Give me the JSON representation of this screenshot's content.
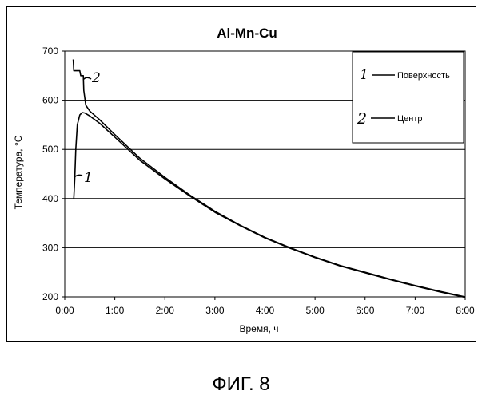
{
  "chart_data": {
    "type": "line",
    "title": "Al-Mn-Cu",
    "xlabel": "Время, ч",
    "ylabel": "Температура, °C",
    "x_ticks": [
      "0:00",
      "1:00",
      "2:00",
      "3:00",
      "4:00",
      "5:00",
      "6:00",
      "7:00",
      "8:00"
    ],
    "y_ticks": [
      "200",
      "300",
      "400",
      "500",
      "600",
      "700"
    ],
    "xlim": [
      0,
      8
    ],
    "ylim": [
      200,
      700
    ],
    "grid": "horizontal",
    "legend_position": "top-right",
    "legend": [
      {
        "number": "1",
        "label": "Поверхность"
      },
      {
        "number": "2",
        "label": "Центр"
      }
    ],
    "series": [
      {
        "id": "surface",
        "annotation": "1",
        "points": [
          [
            0.17,
            400
          ],
          [
            0.18,
            400
          ],
          [
            0.2,
            440
          ],
          [
            0.22,
            500
          ],
          [
            0.25,
            550
          ],
          [
            0.3,
            570
          ],
          [
            0.35,
            575
          ],
          [
            0.4,
            574
          ],
          [
            0.5,
            568
          ],
          [
            0.7,
            553
          ],
          [
            1.0,
            525
          ],
          [
            1.5,
            478
          ],
          [
            2.0,
            440
          ],
          [
            2.5,
            405
          ],
          [
            3.0,
            372
          ],
          [
            3.5,
            345
          ],
          [
            4.0,
            320
          ],
          [
            4.5,
            299
          ],
          [
            5.0,
            280
          ],
          [
            5.5,
            263
          ],
          [
            6.0,
            249
          ],
          [
            6.5,
            235
          ],
          [
            7.0,
            222
          ],
          [
            7.5,
            210
          ],
          [
            8.0,
            199
          ]
        ]
      },
      {
        "id": "center",
        "annotation": "2",
        "points": [
          [
            0.17,
            683
          ],
          [
            0.18,
            660
          ],
          [
            0.3,
            660
          ],
          [
            0.32,
            650
          ],
          [
            0.37,
            650
          ],
          [
            0.38,
            620
          ],
          [
            0.42,
            590
          ],
          [
            0.5,
            578
          ],
          [
            0.7,
            560
          ],
          [
            1.0,
            530
          ],
          [
            1.5,
            482
          ],
          [
            2.0,
            443
          ],
          [
            2.5,
            407
          ],
          [
            3.0,
            374
          ],
          [
            3.5,
            346
          ],
          [
            4.0,
            321
          ],
          [
            4.5,
            300
          ],
          [
            5.0,
            281
          ],
          [
            5.5,
            264
          ],
          [
            6.0,
            250
          ],
          [
            6.5,
            236
          ],
          [
            7.0,
            223
          ],
          [
            7.5,
            211
          ],
          [
            8.0,
            200
          ]
        ]
      }
    ]
  },
  "caption": "ФИГ. 8"
}
